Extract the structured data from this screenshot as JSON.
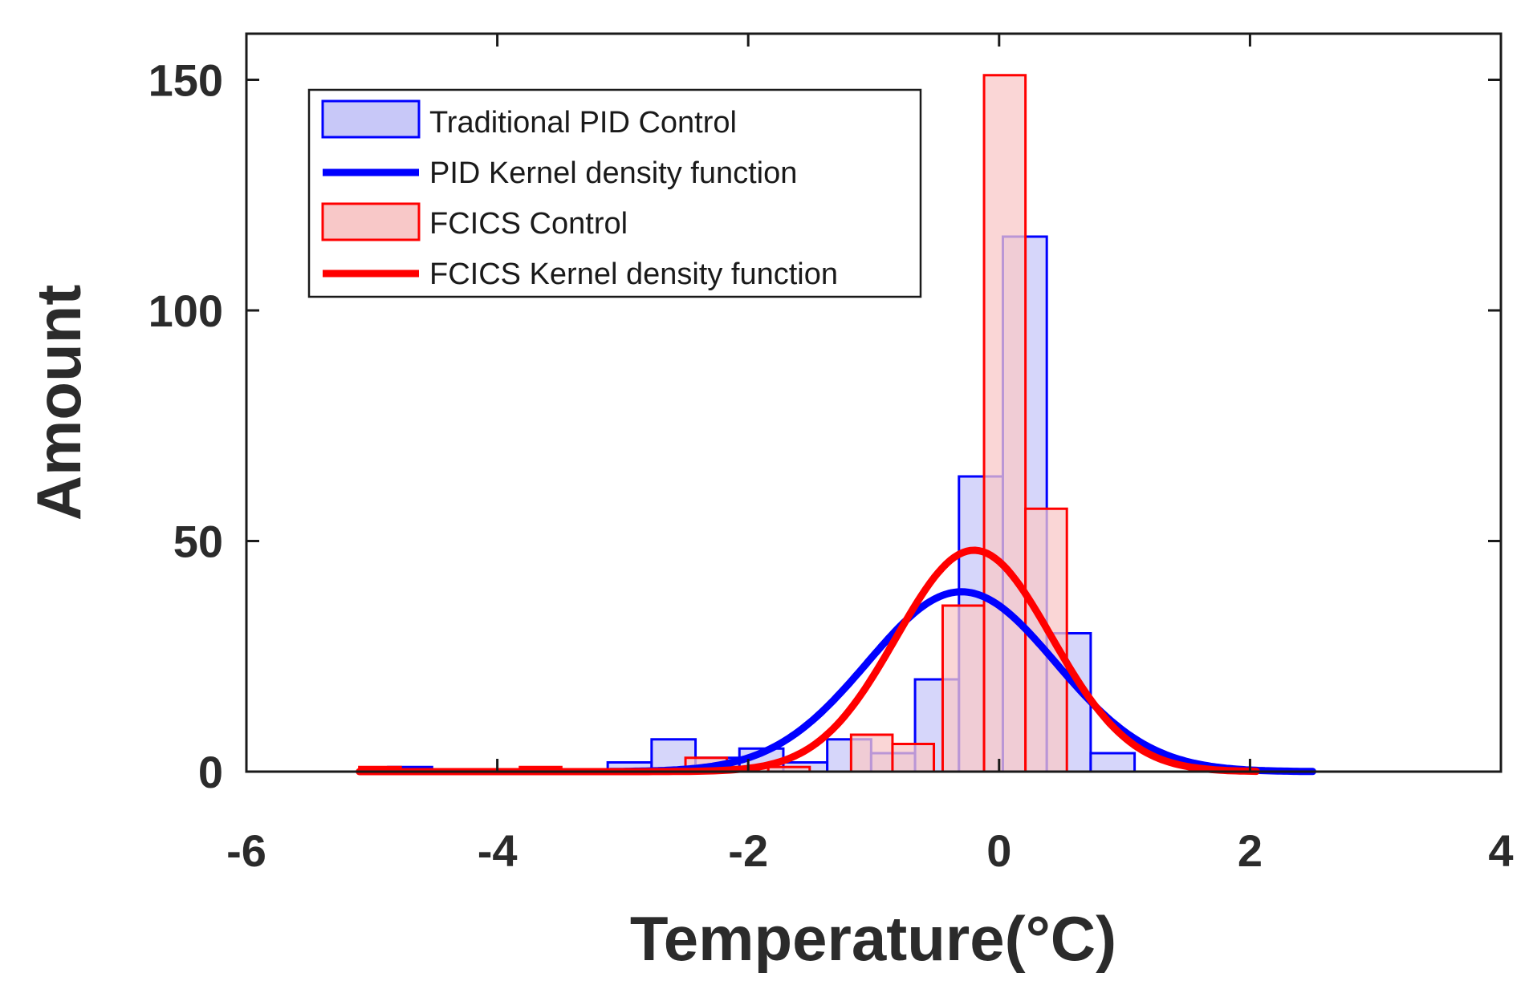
{
  "chart_data": {
    "type": "bar",
    "xlabel": "Temperature(°C)",
    "ylabel": "Amount",
    "xlim": [
      -6,
      4
    ],
    "ylim": [
      0,
      160
    ],
    "xticks": [
      -6,
      -4,
      -2,
      0,
      2,
      4
    ],
    "yticks": [
      0,
      50,
      100,
      150
    ],
    "xtick_labels": [
      "-6",
      "-4",
      "-2",
      "0",
      "2",
      "4"
    ],
    "ytick_labels": [
      "0",
      "50",
      "100",
      "150"
    ],
    "legend_position": "top-left",
    "histograms": [
      {
        "name": "Traditional PID Control",
        "edge_color": "#0000ff",
        "fill_color": "#c8c8f8",
        "bin_width": 0.35,
        "bin_edges_start": [
          -4.87,
          -4.52,
          -3.12,
          -2.77,
          -2.42,
          -2.07,
          -1.72,
          -1.37,
          -1.02,
          -0.67,
          -0.32,
          0.03,
          0.38,
          0.73
        ],
        "counts": [
          1,
          0,
          2,
          7,
          3,
          5,
          2,
          7,
          4,
          20,
          64,
          116,
          30,
          4
        ]
      },
      {
        "name": "FCICS Control",
        "edge_color": "#ff0000",
        "fill_color": "#f8c8c8",
        "bin_width": 0.33,
        "bin_edges_start": [
          -5.1,
          -3.82,
          -2.5,
          -2.17,
          -1.84,
          -1.18,
          -0.85,
          -0.45,
          -0.12,
          0.21
        ],
        "counts": [
          1,
          1,
          3,
          1,
          1,
          8,
          6,
          36,
          151,
          57
        ]
      }
    ],
    "density_curves": [
      {
        "name": "PID Kernel density function",
        "color": "#0000ff",
        "mean": -0.3,
        "peak": 39,
        "sd": 0.75,
        "x_range": [
          -3.1,
          2.5
        ]
      },
      {
        "name": "FCICS Kernel density function",
        "color": "#ff0000",
        "mean": -0.2,
        "peak": 48,
        "sd": 0.62,
        "x_range": [
          -5.1,
          2.05
        ]
      }
    ],
    "legend": [
      {
        "label": "Traditional PID Control",
        "kind": "patch",
        "edge_color": "#0000ff",
        "fill_color": "#c8c8f8"
      },
      {
        "label": "PID Kernel density function",
        "kind": "line",
        "color": "#0000ff"
      },
      {
        "label": "FCICS Control",
        "kind": "patch",
        "edge_color": "#ff0000",
        "fill_color": "#f8c8c8"
      },
      {
        "label": "FCICS Kernel density function",
        "kind": "line",
        "color": "#ff0000"
      }
    ]
  }
}
